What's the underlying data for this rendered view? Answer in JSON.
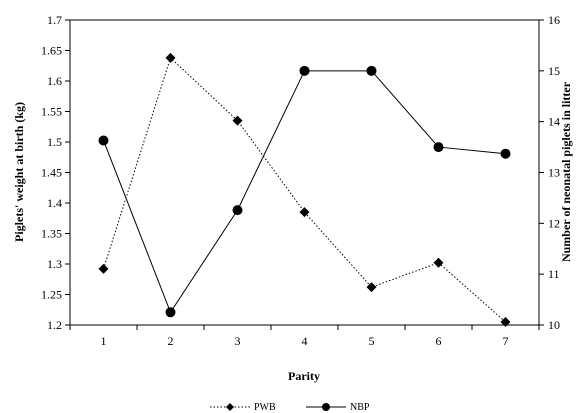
{
  "chart_data": {
    "type": "line",
    "x": [
      1,
      2,
      3,
      4,
      5,
      6,
      7
    ],
    "categories": [
      "1",
      "2",
      "3",
      "4",
      "5",
      "6",
      "7"
    ],
    "series": [
      {
        "name": "PWB",
        "axis": "left",
        "values": [
          1.292,
          1.638,
          1.535,
          1.385,
          1.262,
          1.302,
          1.205
        ],
        "line": "dotted",
        "marker": "diamond"
      },
      {
        "name": "NBP",
        "axis": "right",
        "values": [
          13.63,
          10.25,
          12.26,
          15.0,
          15.0,
          13.5,
          13.37
        ],
        "line": "solid",
        "marker": "circle"
      }
    ],
    "title": "",
    "xlabel": "Parity",
    "ylabel": "Piglets' weight at birth (kg)",
    "y2label": "Number of neonatal piglets in litter",
    "ylim": [
      1.2,
      1.7
    ],
    "y2lim": [
      10,
      16
    ],
    "yticks": [
      "1.2",
      "1.25",
      "1.3",
      "1.35",
      "1.4",
      "1.45",
      "1.5",
      "1.55",
      "1.6",
      "1.65",
      "1.7"
    ],
    "y2ticks": [
      "10",
      "11",
      "12",
      "13",
      "14",
      "15",
      "16"
    ],
    "grid": false,
    "legend_position": "bottom-center"
  }
}
